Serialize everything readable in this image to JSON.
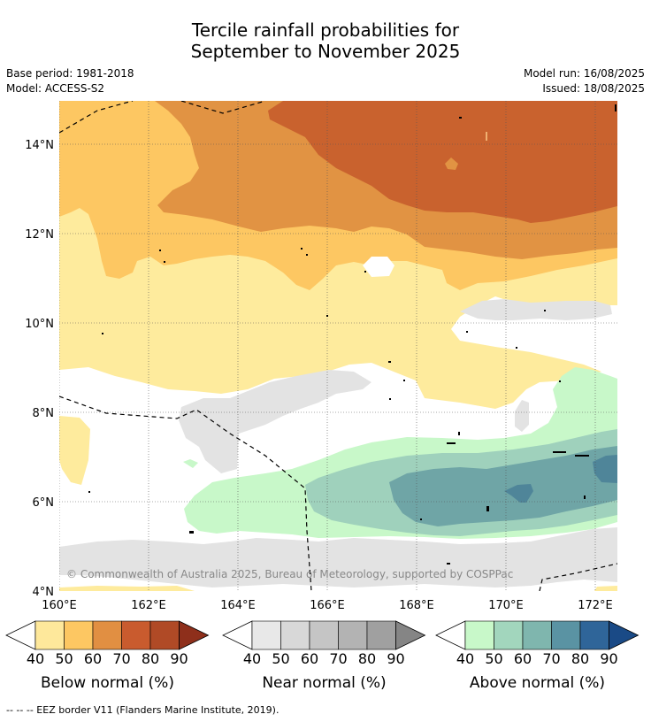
{
  "title_line1": "Tercile rainfall probabilities for",
  "title_line2": "September to November 2025",
  "base_period": "Base period: 1981-2018",
  "model": "Model: ACCESS-S2",
  "model_run": "Model run: 16/08/2025",
  "issued": "Issued: 18/08/2025",
  "copyright": "© Commonwealth of Australia 2025, Bureau of Meteorology, supported by COSPPac",
  "footer": "-- -- -- EEZ border V11 (Flanders Marine Institute, 2019).",
  "map": {
    "lat_labels": [
      "14°N",
      "12°N",
      "10°N",
      "8°N",
      "6°N",
      "4°N"
    ],
    "lon_labels": [
      "160°E",
      "162°E",
      "164°E",
      "166°E",
      "168°E",
      "170°E",
      "172°E"
    ]
  },
  "colorbars": [
    {
      "title": "Below normal (%)",
      "ticks": [
        "40",
        "50",
        "60",
        "70",
        "80",
        "90"
      ],
      "colors": [
        "#fee89b",
        "#fdc762",
        "#e18f42",
        "#c95b2e",
        "#b04a26",
        "#8e2f1b"
      ]
    },
    {
      "title": "Near normal (%)",
      "ticks": [
        "40",
        "50",
        "60",
        "70",
        "80",
        "90"
      ],
      "colors": [
        "#e8e8e8",
        "#d8d8d8",
        "#c5c5c5",
        "#b3b3b3",
        "#a0a0a0",
        "#858585"
      ]
    },
    {
      "title": "Above normal (%)",
      "ticks": [
        "40",
        "50",
        "60",
        "70",
        "80",
        "90"
      ],
      "colors": [
        "#c8f8c9",
        "#a2d6bd",
        "#7fb6ae",
        "#5a93a3",
        "#2f6599",
        "#1a4a86"
      ]
    }
  ],
  "colors": {
    "below_40": "#feeb9d",
    "below_50": "#fdc762",
    "below_60": "#e19343",
    "below_70": "#c9622e",
    "near_40": "#e3e3e3",
    "above_40": "#c8f8c9",
    "above_50": "#9fd1bc",
    "above_60": "#6fa5a6",
    "above_70": "#4f8599"
  }
}
